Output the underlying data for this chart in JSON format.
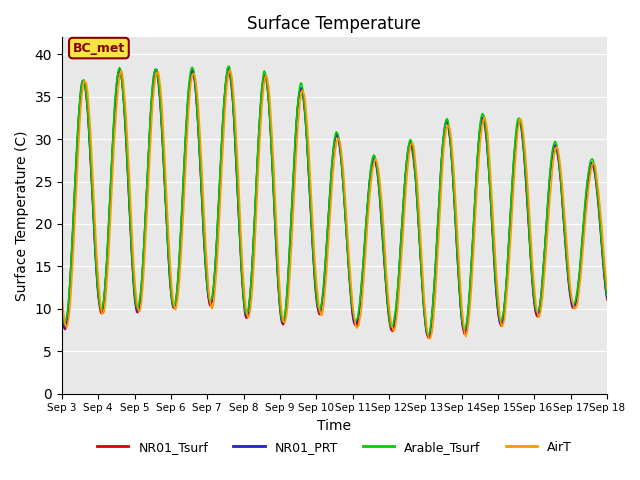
{
  "title": "Surface Temperature",
  "xlabel": "Time",
  "ylabel": "Surface Temperature (C)",
  "ylim": [
    0,
    42
  ],
  "yticks": [
    0,
    5,
    10,
    15,
    20,
    25,
    30,
    35,
    40
  ],
  "bg_color": "#e8e8e8",
  "annotation_text": "BC_met",
  "annotation_bg": "#f5e642",
  "annotation_border": "#8b0000",
  "colors": {
    "NR01_Tsurf": "#dd0000",
    "NR01_PRT": "#2222cc",
    "Arable_Tsurf": "#00cc00",
    "AirT": "#ff9900"
  },
  "linewidth": 1.2,
  "n_days": 15,
  "start_day": 3,
  "pts_per_day": 48
}
